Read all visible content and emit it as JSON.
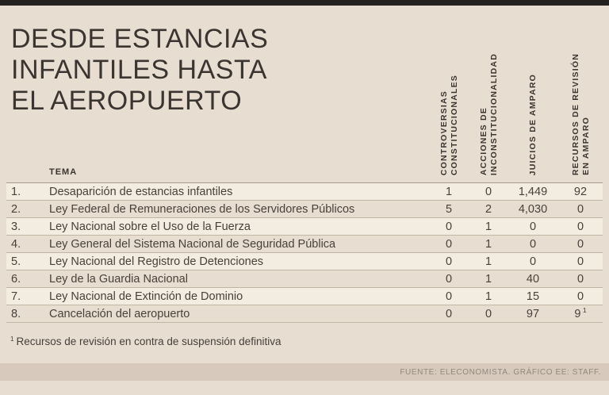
{
  "colors": {
    "background": "#e8ddd1",
    "top_bar": "#22211f",
    "text": "#3a3530",
    "row_stripe": "#f3ece1",
    "row_line": "#c2b5a4",
    "footer_bar": "#d7cabd",
    "footer_text": "#8f887d"
  },
  "title": {
    "lines": [
      "DESDE ESTANCIAS",
      "INFANTILES HASTA",
      "EL AEROPUERTO"
    ]
  },
  "table": {
    "tema_label": "TEMA",
    "columns": [
      {
        "id": "controversias",
        "lines": [
          "CONTROVERSIAS",
          "CONSTITUCIONALES"
        ]
      },
      {
        "id": "acciones",
        "lines": [
          "ACCIONES DE",
          "INCONSTITUCIONALIDAD"
        ]
      },
      {
        "id": "juicios",
        "lines": [
          "JUICIOS DE AMPARO"
        ]
      },
      {
        "id": "recursos",
        "lines": [
          "RECURSOS DE REVISIÓN",
          "EN AMPARO"
        ]
      }
    ],
    "rows": [
      {
        "num": "1.",
        "tema": "Desaparición de estancias infantiles",
        "values": [
          "1",
          "0",
          "1,449",
          "92"
        ]
      },
      {
        "num": "2.",
        "tema": "Ley Federal de Remuneraciones de los Servidores Públicos",
        "values": [
          "5",
          "2",
          "4,030",
          "0"
        ]
      },
      {
        "num": "3.",
        "tema": "Ley Nacional sobre el Uso de la Fuerza",
        "values": [
          "0",
          "1",
          "0",
          "0"
        ]
      },
      {
        "num": "4.",
        "tema": "Ley General del Sistema Nacional de Seguridad Pública",
        "values": [
          "0",
          "1",
          "0",
          "0"
        ]
      },
      {
        "num": "5.",
        "tema": "Ley Nacional del Registro de Detenciones",
        "values": [
          "0",
          "1",
          "0",
          "0"
        ]
      },
      {
        "num": "6.",
        "tema": "Ley de la Guardia Nacional",
        "values": [
          "0",
          "1",
          "40",
          "0"
        ]
      },
      {
        "num": "7.",
        "tema": "Ley Nacional de Extinción de Dominio",
        "values": [
          "0",
          "1",
          "15",
          "0"
        ]
      },
      {
        "num": "8.",
        "tema": "Cancelación del aeropuerto",
        "values": [
          "0",
          "0",
          "97",
          "9"
        ],
        "sup": "1"
      }
    ]
  },
  "footnote": {
    "marker": "1",
    "text": "Recursos de revisión en contra de suspensión definitiva"
  },
  "footer": {
    "source": "FUENTE: ELECONOMISTA. GRÁFICO EE: STAFF."
  },
  "chart_data": {
    "type": "table",
    "title": "DESDE ESTANCIAS INFANTILES HASTA EL AEROPUERTO",
    "columns": [
      "TEMA",
      "CONTROVERSIAS CONSTITUCIONALES",
      "ACCIONES DE INCONSTITUCIONALIDAD",
      "JUICIOS DE AMPARO",
      "RECURSOS DE REVISIÓN EN AMPARO"
    ],
    "rows": [
      [
        "Desaparición de estancias infantiles",
        1,
        0,
        1449,
        92
      ],
      [
        "Ley Federal de Remuneraciones de los Servidores Públicos",
        5,
        2,
        4030,
        0
      ],
      [
        "Ley Nacional sobre el Uso de la Fuerza",
        0,
        1,
        0,
        0
      ],
      [
        "Ley General del Sistema Nacional de Seguridad Pública",
        0,
        1,
        0,
        0
      ],
      [
        "Ley Nacional del Registro de Detenciones",
        0,
        1,
        0,
        0
      ],
      [
        "Ley de la Guardia Nacional",
        0,
        1,
        40,
        0
      ],
      [
        "Ley Nacional de Extinción de Dominio",
        0,
        1,
        15,
        0
      ],
      [
        "Cancelación del aeropuerto",
        0,
        0,
        97,
        9
      ]
    ],
    "footnote": "1 Recursos de revisión en contra de suspensión definitiva",
    "source": "FUENTE: ELECONOMISTA. GRÁFICO EE: STAFF."
  }
}
